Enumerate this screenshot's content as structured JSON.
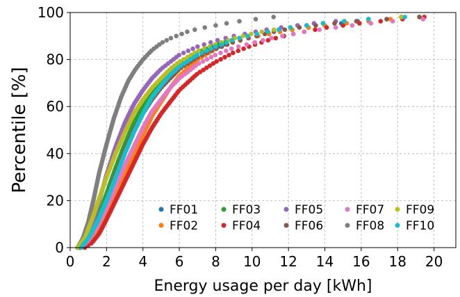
{
  "chart_data": {
    "type": "scatter",
    "title": "",
    "xlabel": "Energy usage per day [kWh]",
    "ylabel": "Percentile [%]",
    "xlim": [
      0,
      21.2
    ],
    "ylim": [
      0,
      100
    ],
    "xticks": [
      0,
      2,
      4,
      6,
      8,
      10,
      12,
      14,
      16,
      18,
      20
    ],
    "yticks": [
      0,
      20,
      40,
      60,
      80,
      100
    ],
    "grid": true,
    "legend_position": "lower-right",
    "series": [
      {
        "name": "FF01",
        "color": "#1f77b4",
        "points": [
          [
            0.5,
            0
          ],
          [
            1,
            3
          ],
          [
            1.5,
            10
          ],
          [
            2,
            20
          ],
          [
            2.5,
            31
          ],
          [
            3,
            42
          ],
          [
            3.5,
            52
          ],
          [
            4,
            60
          ],
          [
            4.5,
            66
          ],
          [
            5,
            71
          ],
          [
            5.5,
            75
          ],
          [
            6,
            78.5
          ],
          [
            7,
            82
          ],
          [
            8,
            85
          ],
          [
            9,
            87.5
          ],
          [
            10,
            89.5
          ],
          [
            11,
            91
          ],
          [
            12,
            92.5
          ],
          [
            13,
            93.5
          ],
          [
            14,
            94.5
          ],
          [
            15,
            95.5
          ],
          [
            16,
            96.5
          ],
          [
            18,
            97.5
          ],
          [
            20,
            98.5
          ],
          [
            21,
            99
          ]
        ]
      },
      {
        "name": "FF02",
        "color": "#ff7f0e",
        "points": [
          [
            0.6,
            0
          ],
          [
            1,
            2
          ],
          [
            1.5,
            7
          ],
          [
            2,
            14
          ],
          [
            2.5,
            22
          ],
          [
            3,
            31
          ],
          [
            3.5,
            40
          ],
          [
            4,
            48
          ],
          [
            4.5,
            56
          ],
          [
            5,
            62
          ],
          [
            5.5,
            68
          ],
          [
            6,
            73
          ],
          [
            7,
            80
          ],
          [
            8,
            84.5
          ],
          [
            9,
            87.5
          ],
          [
            10,
            89.5
          ],
          [
            11,
            91
          ],
          [
            12,
            92.5
          ],
          [
            13,
            93.5
          ],
          [
            14,
            94.5
          ],
          [
            16,
            96
          ],
          [
            18,
            97.5
          ],
          [
            20,
            98.5
          ],
          [
            21,
            99
          ]
        ]
      },
      {
        "name": "FF03",
        "color": "#2ca02c",
        "points": [
          [
            0.5,
            0
          ],
          [
            1,
            4
          ],
          [
            1.5,
            12
          ],
          [
            2,
            23
          ],
          [
            2.5,
            34
          ],
          [
            3,
            44
          ],
          [
            3.5,
            53
          ],
          [
            4,
            60
          ],
          [
            4.5,
            66
          ],
          [
            5,
            71
          ],
          [
            5.5,
            75
          ],
          [
            6,
            78.5
          ],
          [
            7,
            83
          ],
          [
            8,
            86
          ],
          [
            9,
            88.5
          ],
          [
            10,
            90.5
          ],
          [
            11,
            92
          ],
          [
            12,
            93.5
          ],
          [
            13,
            94.5
          ],
          [
            14,
            95.5
          ],
          [
            16,
            97
          ],
          [
            18,
            98
          ],
          [
            20,
            99
          ]
        ]
      },
      {
        "name": "FF04",
        "color": "#d62728",
        "points": [
          [
            0.8,
            0
          ],
          [
            1.2,
            2
          ],
          [
            1.6,
            6
          ],
          [
            2,
            12
          ],
          [
            2.5,
            20
          ],
          [
            3,
            28
          ],
          [
            3.5,
            36
          ],
          [
            4,
            44
          ],
          [
            4.5,
            51
          ],
          [
            5,
            57
          ],
          [
            5.5,
            62
          ],
          [
            6,
            67
          ],
          [
            7,
            74
          ],
          [
            8,
            79
          ],
          [
            9,
            83
          ],
          [
            10,
            86
          ],
          [
            11,
            88.5
          ],
          [
            12,
            90.5
          ],
          [
            13,
            92
          ],
          [
            14,
            93.5
          ],
          [
            15,
            94.5
          ],
          [
            16,
            95.5
          ],
          [
            18,
            97
          ],
          [
            20,
            98.5
          ],
          [
            21,
            99
          ]
        ]
      },
      {
        "name": "FF05",
        "color": "#9467bd",
        "points": [
          [
            0.4,
            0
          ],
          [
            0.8,
            3
          ],
          [
            1.2,
            10
          ],
          [
            1.6,
            20
          ],
          [
            2,
            31
          ],
          [
            2.5,
            43
          ],
          [
            3,
            53
          ],
          [
            3.5,
            61
          ],
          [
            4,
            67
          ],
          [
            4.5,
            72
          ],
          [
            5,
            76
          ],
          [
            5.5,
            79
          ],
          [
            6,
            82
          ],
          [
            7,
            85.5
          ],
          [
            8,
            88
          ],
          [
            9,
            90
          ],
          [
            10,
            91.5
          ],
          [
            11,
            93
          ],
          [
            12,
            94
          ],
          [
            13,
            95
          ],
          [
            14,
            96
          ],
          [
            16,
            97
          ],
          [
            18,
            98
          ],
          [
            20,
            99
          ]
        ]
      },
      {
        "name": "FF06",
        "color": "#8c564b",
        "points": [
          [
            0.5,
            0
          ],
          [
            1,
            3
          ],
          [
            1.5,
            10
          ],
          [
            2,
            20
          ],
          [
            2.5,
            31
          ],
          [
            3,
            41
          ],
          [
            3.5,
            50
          ],
          [
            4,
            57
          ],
          [
            4.5,
            63
          ],
          [
            5,
            68
          ],
          [
            5.5,
            72
          ],
          [
            6,
            76
          ],
          [
            7,
            81
          ],
          [
            8,
            84.5
          ],
          [
            9,
            87.5
          ],
          [
            10,
            89.5
          ],
          [
            11,
            91.5
          ],
          [
            12,
            93
          ],
          [
            13,
            94
          ],
          [
            14,
            95
          ],
          [
            16,
            96.5
          ],
          [
            18,
            97.5
          ],
          [
            20,
            98.5
          ]
        ]
      },
      {
        "name": "FF07",
        "color": "#e377c2",
        "points": [
          [
            0.6,
            0
          ],
          [
            1,
            3
          ],
          [
            1.5,
            9
          ],
          [
            2,
            17
          ],
          [
            2.5,
            26
          ],
          [
            3,
            35
          ],
          [
            3.5,
            43
          ],
          [
            4,
            51
          ],
          [
            4.5,
            58
          ],
          [
            5,
            63
          ],
          [
            5.5,
            68
          ],
          [
            6,
            72
          ],
          [
            7,
            78
          ],
          [
            8,
            82
          ],
          [
            9,
            85
          ],
          [
            10,
            87
          ],
          [
            11,
            89
          ],
          [
            12,
            90.5
          ],
          [
            13,
            92
          ],
          [
            14,
            93
          ],
          [
            16,
            95
          ],
          [
            18,
            96.5
          ],
          [
            20,
            97.5
          ],
          [
            21,
            98
          ]
        ]
      },
      {
        "name": "FF08",
        "color": "#7f7f7f",
        "points": [
          [
            0.4,
            0
          ],
          [
            0.7,
            4
          ],
          [
            1,
            11
          ],
          [
            1.3,
            21
          ],
          [
            1.6,
            32
          ],
          [
            2,
            44
          ],
          [
            2.4,
            55
          ],
          [
            2.8,
            64
          ],
          [
            3.2,
            71
          ],
          [
            3.6,
            76
          ],
          [
            4,
            80
          ],
          [
            4.5,
            84
          ],
          [
            5,
            87
          ],
          [
            5.5,
            89
          ],
          [
            6,
            90.5
          ],
          [
            6.5,
            92
          ],
          [
            7,
            93
          ],
          [
            8,
            94.5
          ],
          [
            9,
            96
          ],
          [
            10,
            97
          ],
          [
            11,
            98
          ],
          [
            12.8,
            99
          ]
        ]
      },
      {
        "name": "FF09",
        "color": "#bcbd22",
        "points": [
          [
            0.4,
            0
          ],
          [
            0.8,
            4
          ],
          [
            1.2,
            12
          ],
          [
            1.6,
            21
          ],
          [
            2,
            30
          ],
          [
            2.5,
            40
          ],
          [
            3,
            49
          ],
          [
            3.5,
            57
          ],
          [
            4,
            63
          ],
          [
            4.5,
            68
          ],
          [
            5,
            72
          ],
          [
            5.5,
            76
          ],
          [
            6,
            79
          ],
          [
            7,
            83.5
          ],
          [
            8,
            86.5
          ],
          [
            9,
            89
          ],
          [
            10,
            91
          ],
          [
            11,
            92.5
          ],
          [
            12,
            93.5
          ],
          [
            13,
            94.5
          ],
          [
            14,
            95.5
          ],
          [
            16,
            97
          ],
          [
            18,
            98
          ],
          [
            20,
            99
          ]
        ]
      },
      {
        "name": "FF10",
        "color": "#17becf",
        "points": [
          [
            0.6,
            0
          ],
          [
            1,
            4
          ],
          [
            1.5,
            11
          ],
          [
            2,
            20
          ],
          [
            2.5,
            30
          ],
          [
            3,
            40
          ],
          [
            3.5,
            49
          ],
          [
            4,
            57
          ],
          [
            4.5,
            64
          ],
          [
            5,
            69
          ],
          [
            5.5,
            73.5
          ],
          [
            6,
            77
          ],
          [
            7,
            82
          ],
          [
            8,
            85.5
          ],
          [
            9,
            88.5
          ],
          [
            10,
            90.5
          ],
          [
            11,
            92
          ],
          [
            12,
            93.5
          ],
          [
            13,
            94.5
          ],
          [
            14,
            95.5
          ],
          [
            16,
            97
          ],
          [
            18,
            98
          ],
          [
            20,
            98.5
          ],
          [
            21,
            99
          ]
        ]
      }
    ]
  }
}
